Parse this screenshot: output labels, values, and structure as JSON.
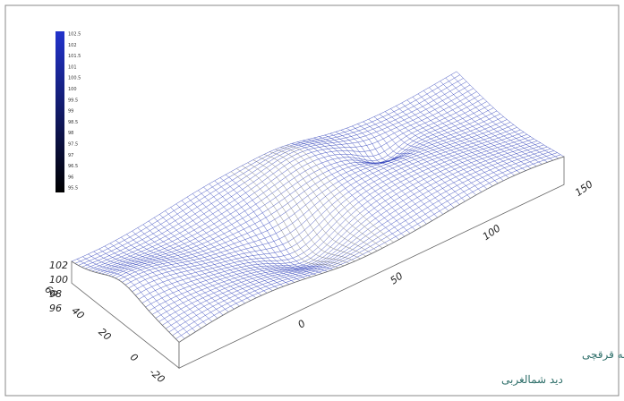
{
  "colorbar": {
    "labels": [
      "102.5",
      "102",
      "101.5",
      "101",
      "100.5",
      "100",
      "99.5",
      "99",
      "98.5",
      "98",
      "97.5",
      "97",
      "96.5",
      "96",
      "95.5"
    ]
  },
  "axes": {
    "z_ticks": [
      "102",
      "100",
      "98",
      "96"
    ],
    "y_ticks": [
      "60",
      "40",
      "20",
      "0",
      "-20"
    ],
    "x_ticks": [
      "0",
      "50",
      "100",
      "150"
    ]
  },
  "caption": {
    "line1": "توپوگرافی سه بعدی سایت راهدارخانه قرقچی",
    "line2": "دید شمالغربی"
  }
}
